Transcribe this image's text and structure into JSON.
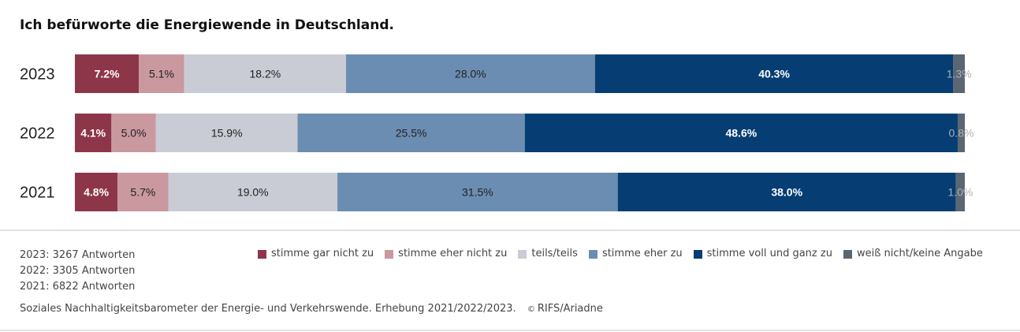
{
  "chart_data": {
    "type": "bar",
    "orientation": "horizontal",
    "stacked": true,
    "title": "Ich befürworte die Energiewende in Deutschland.",
    "categories": [
      "2023",
      "2022",
      "2021"
    ],
    "series": [
      {
        "name": "stimme gar nicht zu",
        "color": "#8d3649",
        "label_color": "#ffffff",
        "values": [
          7.2,
          4.1,
          4.8
        ],
        "labels": [
          "7.2%",
          "4.1%",
          "4.8%"
        ]
      },
      {
        "name": "stimme eher nicht zu",
        "color": "#c9999f",
        "label_color": "#222222",
        "values": [
          5.1,
          5.0,
          5.7
        ],
        "labels": [
          "5.1%",
          "5.0%",
          "5.7%"
        ]
      },
      {
        "name": "teils/teils",
        "color": "#c9ccd4",
        "label_color": "#222222",
        "values": [
          18.2,
          15.9,
          19.0
        ],
        "labels": [
          "18.2%",
          "15.9%",
          "19.0%"
        ]
      },
      {
        "name": "stimme eher zu",
        "color": "#6b8db2",
        "label_color": "#222222",
        "values": [
          28.0,
          25.5,
          31.5
        ],
        "labels": [
          "28.0%",
          "25.5%",
          "31.5%"
        ]
      },
      {
        "name": "stimme voll und ganz zu",
        "color": "#063d73",
        "label_color": "#ffffff",
        "values": [
          40.3,
          48.6,
          38.0
        ],
        "labels": [
          "40.3%",
          "48.6%",
          "38.0%"
        ]
      },
      {
        "name": "weiß nicht/keine Angabe",
        "color": "#5a6772",
        "label_color": "#aab0b5",
        "values": [
          1.3,
          0.8,
          1.0
        ],
        "labels": [
          "1.3%",
          "0.8%",
          "1.0%"
        ]
      }
    ],
    "xlim": [
      0,
      100
    ],
    "grid": false,
    "legend_position": "bottom"
  },
  "counts": [
    "2023: 3267 Antworten",
    "2022: 3305 Antworten",
    "2021: 6822 Antworten"
  ],
  "source": "Soziales Nachhaltigkeitsbarometer der Energie- und Verkehrswende. Erhebung 2021/2022/2023.",
  "copyright_symbol": "©",
  "copyright": "RIFS/Ariadne"
}
